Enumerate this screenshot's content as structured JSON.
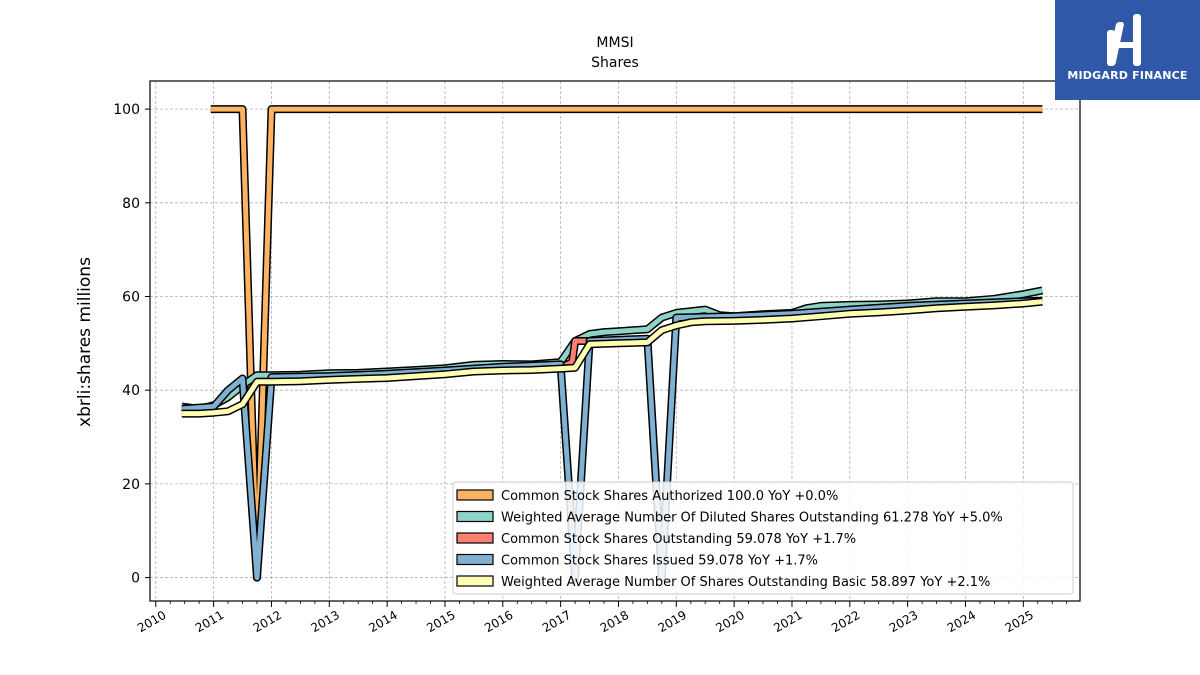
{
  "brand": {
    "name": "MIDGARD FINANCE",
    "color": "#2f58a8"
  },
  "chart_data": {
    "type": "line",
    "title": "MMSI",
    "subtitle": "Shares",
    "xlabel": "",
    "ylabel": "xbrli:shares millions",
    "xlim": [
      2009.9,
      2025.98
    ],
    "ylim": [
      -5,
      106
    ],
    "yticks": [
      0,
      20,
      40,
      60,
      80,
      100
    ],
    "xticks": [
      "2010",
      "2011",
      "2012",
      "2013",
      "2014",
      "2015",
      "2016",
      "2017",
      "2018",
      "2019",
      "2020",
      "2021",
      "2022",
      "2023",
      "2024",
      "2025"
    ],
    "grid": true,
    "legend_position": "lower-right",
    "series": [
      {
        "name": "Common Stock Shares Authorized",
        "legend": "Common Stock Shares Authorized  100.0 YoY +0.0%",
        "color": "#fdb462",
        "x": [
          2010.95,
          2011.5,
          2011.75,
          2012.0,
          2025.33
        ],
        "y": [
          100.0,
          100.0,
          0.0,
          100.0,
          100.0
        ]
      },
      {
        "name": "Weighted Average Number Of Diluted Shares Outstanding",
        "legend": "Weighted Average Number Of Diluted Shares Outstanding  61.278 YoY +5.0%",
        "color": "#8dd3c7",
        "x": [
          2010.45,
          2010.75,
          2011.0,
          2011.25,
          2011.5,
          2011.75,
          2012.0,
          2012.5,
          2013.0,
          2013.5,
          2014.0,
          2014.5,
          2015.0,
          2015.5,
          2016.0,
          2016.5,
          2017.0,
          2017.25,
          2017.5,
          2017.75,
          2018.0,
          2018.5,
          2018.75,
          2019.0,
          2019.5,
          2019.75,
          2020.0,
          2020.5,
          2021.0,
          2021.25,
          2021.5,
          2022.0,
          2022.5,
          2023.0,
          2023.5,
          2024.0,
          2024.5,
          2025.0,
          2025.33
        ],
        "y": [
          36.5,
          36.0,
          36.8,
          38.5,
          41.0,
          43.2,
          43.2,
          43.3,
          43.6,
          43.7,
          44.0,
          44.3,
          44.7,
          45.4,
          45.6,
          45.5,
          46.0,
          50.5,
          52.0,
          52.4,
          52.6,
          53.0,
          55.5,
          56.5,
          57.2,
          56.0,
          55.8,
          56.2,
          56.5,
          57.5,
          58.0,
          58.2,
          58.3,
          58.5,
          59.0,
          59.0,
          59.5,
          60.5,
          61.3
        ]
      },
      {
        "name": "Common Stock Shares Outstanding",
        "legend": "Common Stock Shares Outstanding  59.078 YoY +1.7%",
        "color": "#fb8072",
        "x": [
          2016.95,
          2017.2,
          2017.25,
          2017.5
        ],
        "y": [
          44.5,
          46.0,
          50.5,
          50.5
        ]
      },
      {
        "name": "Common Stock Shares Issued",
        "legend": "Common Stock Shares Issued  59.078 YoY +1.7%",
        "color": "#80b1d3",
        "x": [
          2010.45,
          2011.0,
          2011.25,
          2011.5,
          2011.75,
          2012.0,
          2013.0,
          2014.0,
          2015.0,
          2016.0,
          2017.0,
          2017.25,
          2017.5,
          2018.5,
          2018.75,
          2019.0,
          2020.0,
          2021.0,
          2022.0,
          2023.0,
          2024.0,
          2025.0,
          2025.33
        ],
        "y": [
          36.0,
          36.5,
          40.0,
          42.5,
          0.0,
          42.8,
          43.0,
          43.5,
          44.2,
          45.0,
          45.5,
          0.0,
          50.5,
          51.0,
          0.0,
          55.5,
          55.8,
          56.3,
          57.2,
          58.0,
          58.5,
          59.0,
          59.1
        ]
      },
      {
        "name": "Weighted Average Number Of Shares Outstanding Basic",
        "legend": "Weighted Average Number Of Shares Outstanding Basic  58.897 YoY +2.1%",
        "color": "#ffffb3",
        "x": [
          2010.45,
          2010.75,
          2011.0,
          2011.25,
          2011.5,
          2011.75,
          2012.0,
          2012.5,
          2013.0,
          2013.5,
          2014.0,
          2014.5,
          2015.0,
          2015.5,
          2016.0,
          2016.5,
          2017.0,
          2017.25,
          2017.5,
          2018.0,
          2018.5,
          2018.75,
          2019.0,
          2019.25,
          2019.5,
          2020.0,
          2020.5,
          2021.0,
          2021.5,
          2022.0,
          2022.5,
          2023.0,
          2023.5,
          2024.0,
          2024.5,
          2025.0,
          2025.33
        ],
        "y": [
          35.0,
          35.0,
          35.2,
          35.5,
          37.0,
          41.8,
          41.8,
          41.9,
          42.2,
          42.4,
          42.6,
          43.0,
          43.4,
          44.0,
          44.2,
          44.3,
          44.6,
          44.8,
          49.8,
          50.0,
          50.2,
          52.8,
          53.8,
          54.5,
          54.7,
          54.8,
          55.0,
          55.3,
          55.8,
          56.3,
          56.6,
          57.0,
          57.5,
          57.8,
          58.1,
          58.5,
          58.9
        ]
      }
    ]
  }
}
